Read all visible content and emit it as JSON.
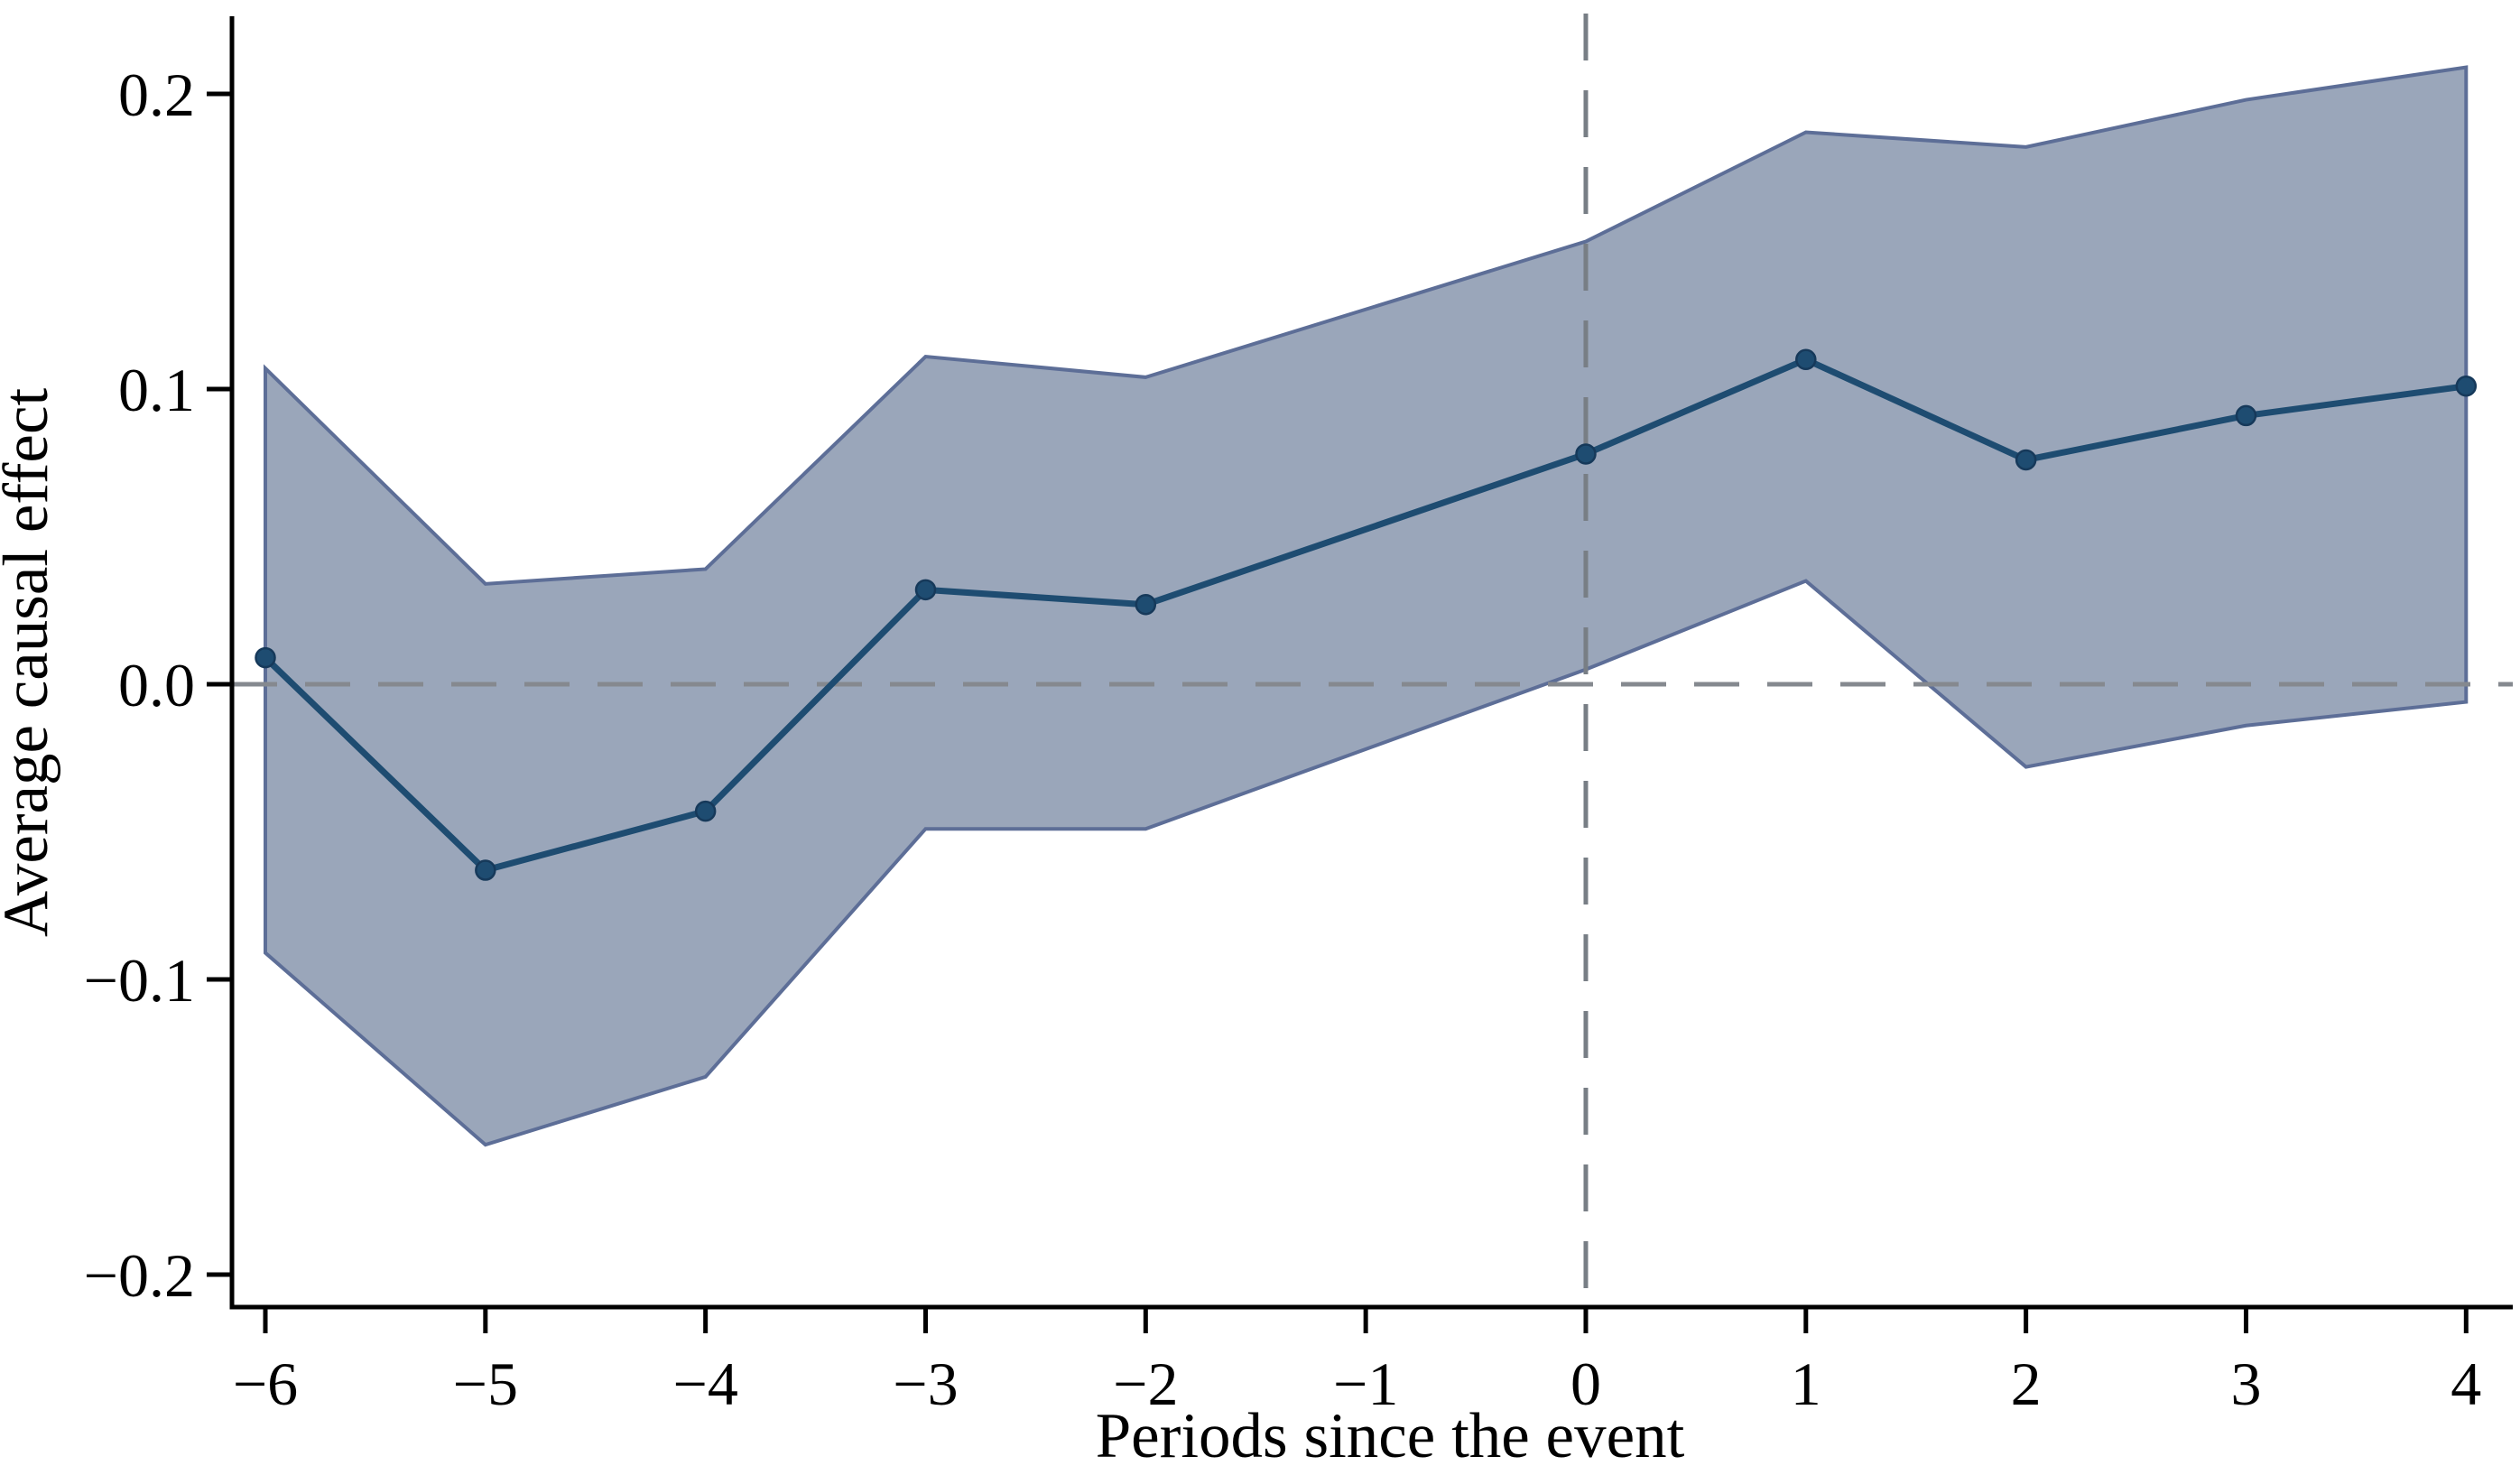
{
  "chart_data": {
    "type": "line",
    "title": "",
    "xlabel": "Periods since the event",
    "ylabel": "Average causal effect",
    "legend_position": "none",
    "grid": false,
    "x": [
      -6,
      -5,
      -4,
      -3,
      -2,
      0,
      1,
      2,
      3,
      4
    ],
    "series": [
      {
        "name": "point-estimate",
        "values": [
          0.009,
          -0.063,
          -0.043,
          0.032,
          0.027,
          0.078,
          0.11,
          0.076,
          0.091,
          0.101
        ]
      },
      {
        "name": "ci-lower",
        "values": [
          -0.091,
          -0.156,
          -0.133,
          -0.049,
          -0.049,
          0.005,
          0.035,
          -0.028,
          -0.014,
          -0.006
        ]
      },
      {
        "name": "ci-upper",
        "values": [
          0.107,
          0.034,
          0.039,
          0.111,
          0.104,
          0.15,
          0.187,
          0.182,
          0.198,
          0.209
        ]
      }
    ],
    "omitted_reference_period": -1,
    "xlim": [
      -6.15,
      4.2
    ],
    "ylim": [
      -0.211,
      0.227
    ],
    "x_ticks": [
      {
        "value": -6,
        "label": "−6"
      },
      {
        "value": -5,
        "label": "−5"
      },
      {
        "value": -4,
        "label": "−4"
      },
      {
        "value": -3,
        "label": "−3"
      },
      {
        "value": -2,
        "label": "−2"
      },
      {
        "value": -1,
        "label": "−1"
      },
      {
        "value": 0,
        "label": "0"
      },
      {
        "value": 1,
        "label": "1"
      },
      {
        "value": 2,
        "label": "2"
      },
      {
        "value": 3,
        "label": "3"
      },
      {
        "value": 4,
        "label": "4"
      }
    ],
    "y_ticks": [
      {
        "value": 0.2,
        "label": "0.2"
      },
      {
        "value": 0.1,
        "label": "0.1"
      },
      {
        "value": 0.0,
        "label": "0.0"
      },
      {
        "value": -0.1,
        "label": "−0.1"
      },
      {
        "value": -0.2,
        "label": "−0.2"
      }
    ],
    "reference_lines": {
      "horizontal_zero": 0.0,
      "vertical_event_time": 0
    },
    "colors": {
      "line": "#1e4c71",
      "marker": "#1e4c71",
      "marker_edge": "#16395a",
      "band_fill": "#9aa6ba",
      "band_edge": "#5d6e97",
      "zero_line": "#85898f",
      "event_line": "#787e85",
      "axis": "#000000"
    }
  }
}
